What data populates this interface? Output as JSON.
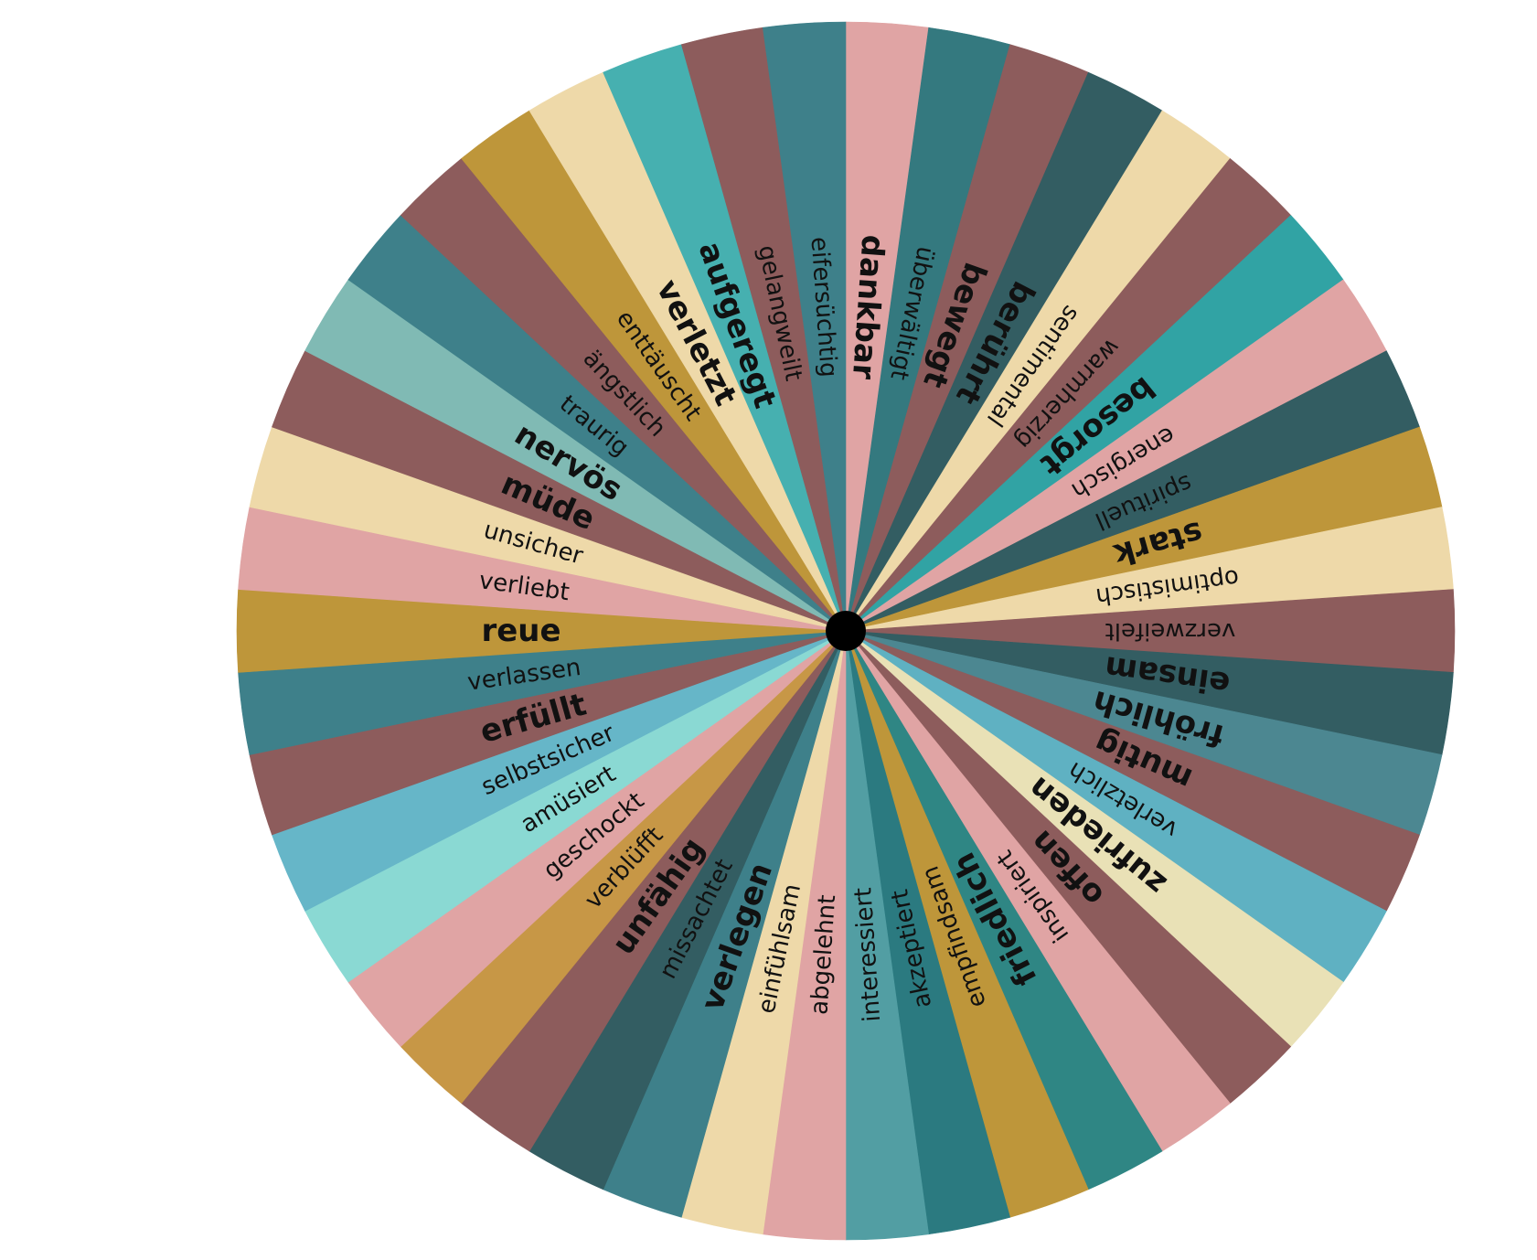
{
  "wheel": {
    "segments": [
      {
        "label": "dankbar",
        "color": "#e0a4a4",
        "emphasis": "bold"
      },
      {
        "label": "überwältigt",
        "color": "#34797f",
        "emphasis": "normal"
      },
      {
        "label": "bewegt",
        "color": "#8d5c5c",
        "emphasis": "bold"
      },
      {
        "label": "berührt",
        "color": "#335d62",
        "emphasis": "bold"
      },
      {
        "label": "sentimental",
        "color": "#eed9a9",
        "emphasis": "normal"
      },
      {
        "label": "warmherzig",
        "color": "#8d5c5c",
        "emphasis": "normal"
      },
      {
        "label": "besorgt",
        "color": "#31a3a4",
        "emphasis": "bold"
      },
      {
        "label": "energisch",
        "color": "#e0a4a4",
        "emphasis": "normal"
      },
      {
        "label": "spirituell",
        "color": "#335d62",
        "emphasis": "normal"
      },
      {
        "label": "stark",
        "color": "#be963a",
        "emphasis": "bold"
      },
      {
        "label": "optimistisch",
        "color": "#eed9a9",
        "emphasis": "normal"
      },
      {
        "label": "verzweifelt",
        "color": "#8d5c5c",
        "emphasis": "normal"
      },
      {
        "label": "einsam",
        "color": "#335d62",
        "emphasis": "bold"
      },
      {
        "label": "fröhlich",
        "color": "#4c8791",
        "emphasis": "bold"
      },
      {
        "label": "mutig",
        "color": "#8d5c5c",
        "emphasis": "bold"
      },
      {
        "label": "verletzlich",
        "color": "#5fb1c2",
        "emphasis": "normal"
      },
      {
        "label": "zufrieden",
        "color": "#e9e1b6",
        "emphasis": "bold"
      },
      {
        "label": "offen",
        "color": "#8d5c5c",
        "emphasis": "bold"
      },
      {
        "label": "inspiriert",
        "color": "#e0a4a4",
        "emphasis": "normal"
      },
      {
        "label": "friedlich",
        "color": "#2f8684",
        "emphasis": "bold"
      },
      {
        "label": "empfindsam",
        "color": "#be963a",
        "emphasis": "normal"
      },
      {
        "label": "akzeptiert",
        "color": "#2b7a80",
        "emphasis": "normal"
      },
      {
        "label": "interessiert",
        "color": "#529ea3",
        "emphasis": "normal"
      },
      {
        "label": "abgelehnt",
        "color": "#e0a4a4",
        "emphasis": "normal"
      },
      {
        "label": "einfühlsam",
        "color": "#eed9a9",
        "emphasis": "normal"
      },
      {
        "label": "verlegen",
        "color": "#3e808a",
        "emphasis": "bold"
      },
      {
        "label": "missachtet",
        "color": "#335d62",
        "emphasis": "normal"
      },
      {
        "label": "unfähig",
        "color": "#8d5c5c",
        "emphasis": "bold"
      },
      {
        "label": "verblüfft",
        "color": "#c79746",
        "emphasis": "normal"
      },
      {
        "label": "geschockt",
        "color": "#e0a4a4",
        "emphasis": "normal"
      },
      {
        "label": "amüsiert",
        "color": "#8ad9d3",
        "emphasis": "normal"
      },
      {
        "label": "selbstsicher",
        "color": "#66b6c8",
        "emphasis": "normal"
      },
      {
        "label": "erfüllt",
        "color": "#8d5c5c",
        "emphasis": "bold"
      },
      {
        "label": "verlassen",
        "color": "#3e808a",
        "emphasis": "normal"
      },
      {
        "label": "reue",
        "color": "#be963a",
        "emphasis": "bold"
      },
      {
        "label": "verliebt",
        "color": "#e0a4a4",
        "emphasis": "normal"
      },
      {
        "label": "unsicher",
        "color": "#eed9a9",
        "emphasis": "normal"
      },
      {
        "label": "müde",
        "color": "#8d5c5c",
        "emphasis": "bold"
      },
      {
        "label": "nervös",
        "color": "#80bab4",
        "emphasis": "bold"
      },
      {
        "label": "traurig",
        "color": "#3e808a",
        "emphasis": "normal"
      },
      {
        "label": "ängstlich",
        "color": "#8d5c5c",
        "emphasis": "normal"
      },
      {
        "label": "enttäuscht",
        "color": "#be963a",
        "emphasis": "normal"
      },
      {
        "label": "verletzt",
        "color": "#eed9a9",
        "emphasis": "bold"
      },
      {
        "label": "aufgeregt",
        "color": "#46b0b0",
        "emphasis": "bold"
      },
      {
        "label": "gelangweilt",
        "color": "#8d5c5c",
        "emphasis": "normal"
      },
      {
        "label": "eifersüchtig",
        "color": "#3e808a",
        "emphasis": "normal"
      }
    ],
    "hub_color": "#000000",
    "text_color": "#111111"
  }
}
